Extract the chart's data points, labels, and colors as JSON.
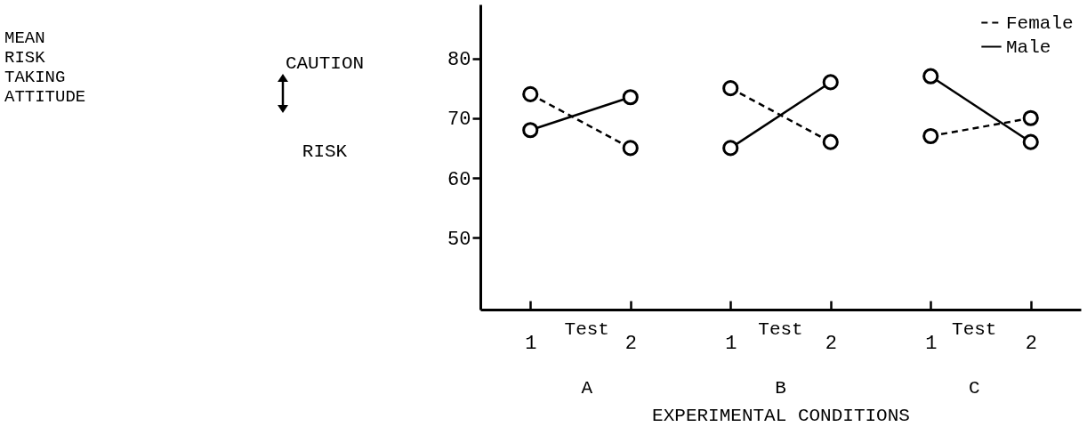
{
  "chart_data": {
    "type": "line",
    "xlabel": "EXPERIMENTAL CONDITIONS",
    "categories": [
      "1",
      "2",
      "1",
      "2",
      "1",
      "2"
    ],
    "series": [
      {
        "name": "Female",
        "color": "#000000",
        "line_style": "dashed",
        "values": [
          74,
          65,
          75,
          66,
          67,
          70
        ]
      },
      {
        "name": "Male",
        "color": "#000000",
        "line_style": "solid",
        "values": [
          68,
          73.5,
          65,
          76,
          77,
          66
        ]
      }
    ],
    "ylim": [
      38,
      89
    ],
    "yticks": [
      50,
      60,
      70,
      80
    ],
    "grid": false,
    "marker": "circle",
    "legend": "top right",
    "annotations": [
      "MEAN RISK TAKING ATTITUDE",
      "CAUTION",
      "RISK",
      "Test",
      "Test",
      "Test",
      "A",
      "B",
      "C"
    ]
  }
}
